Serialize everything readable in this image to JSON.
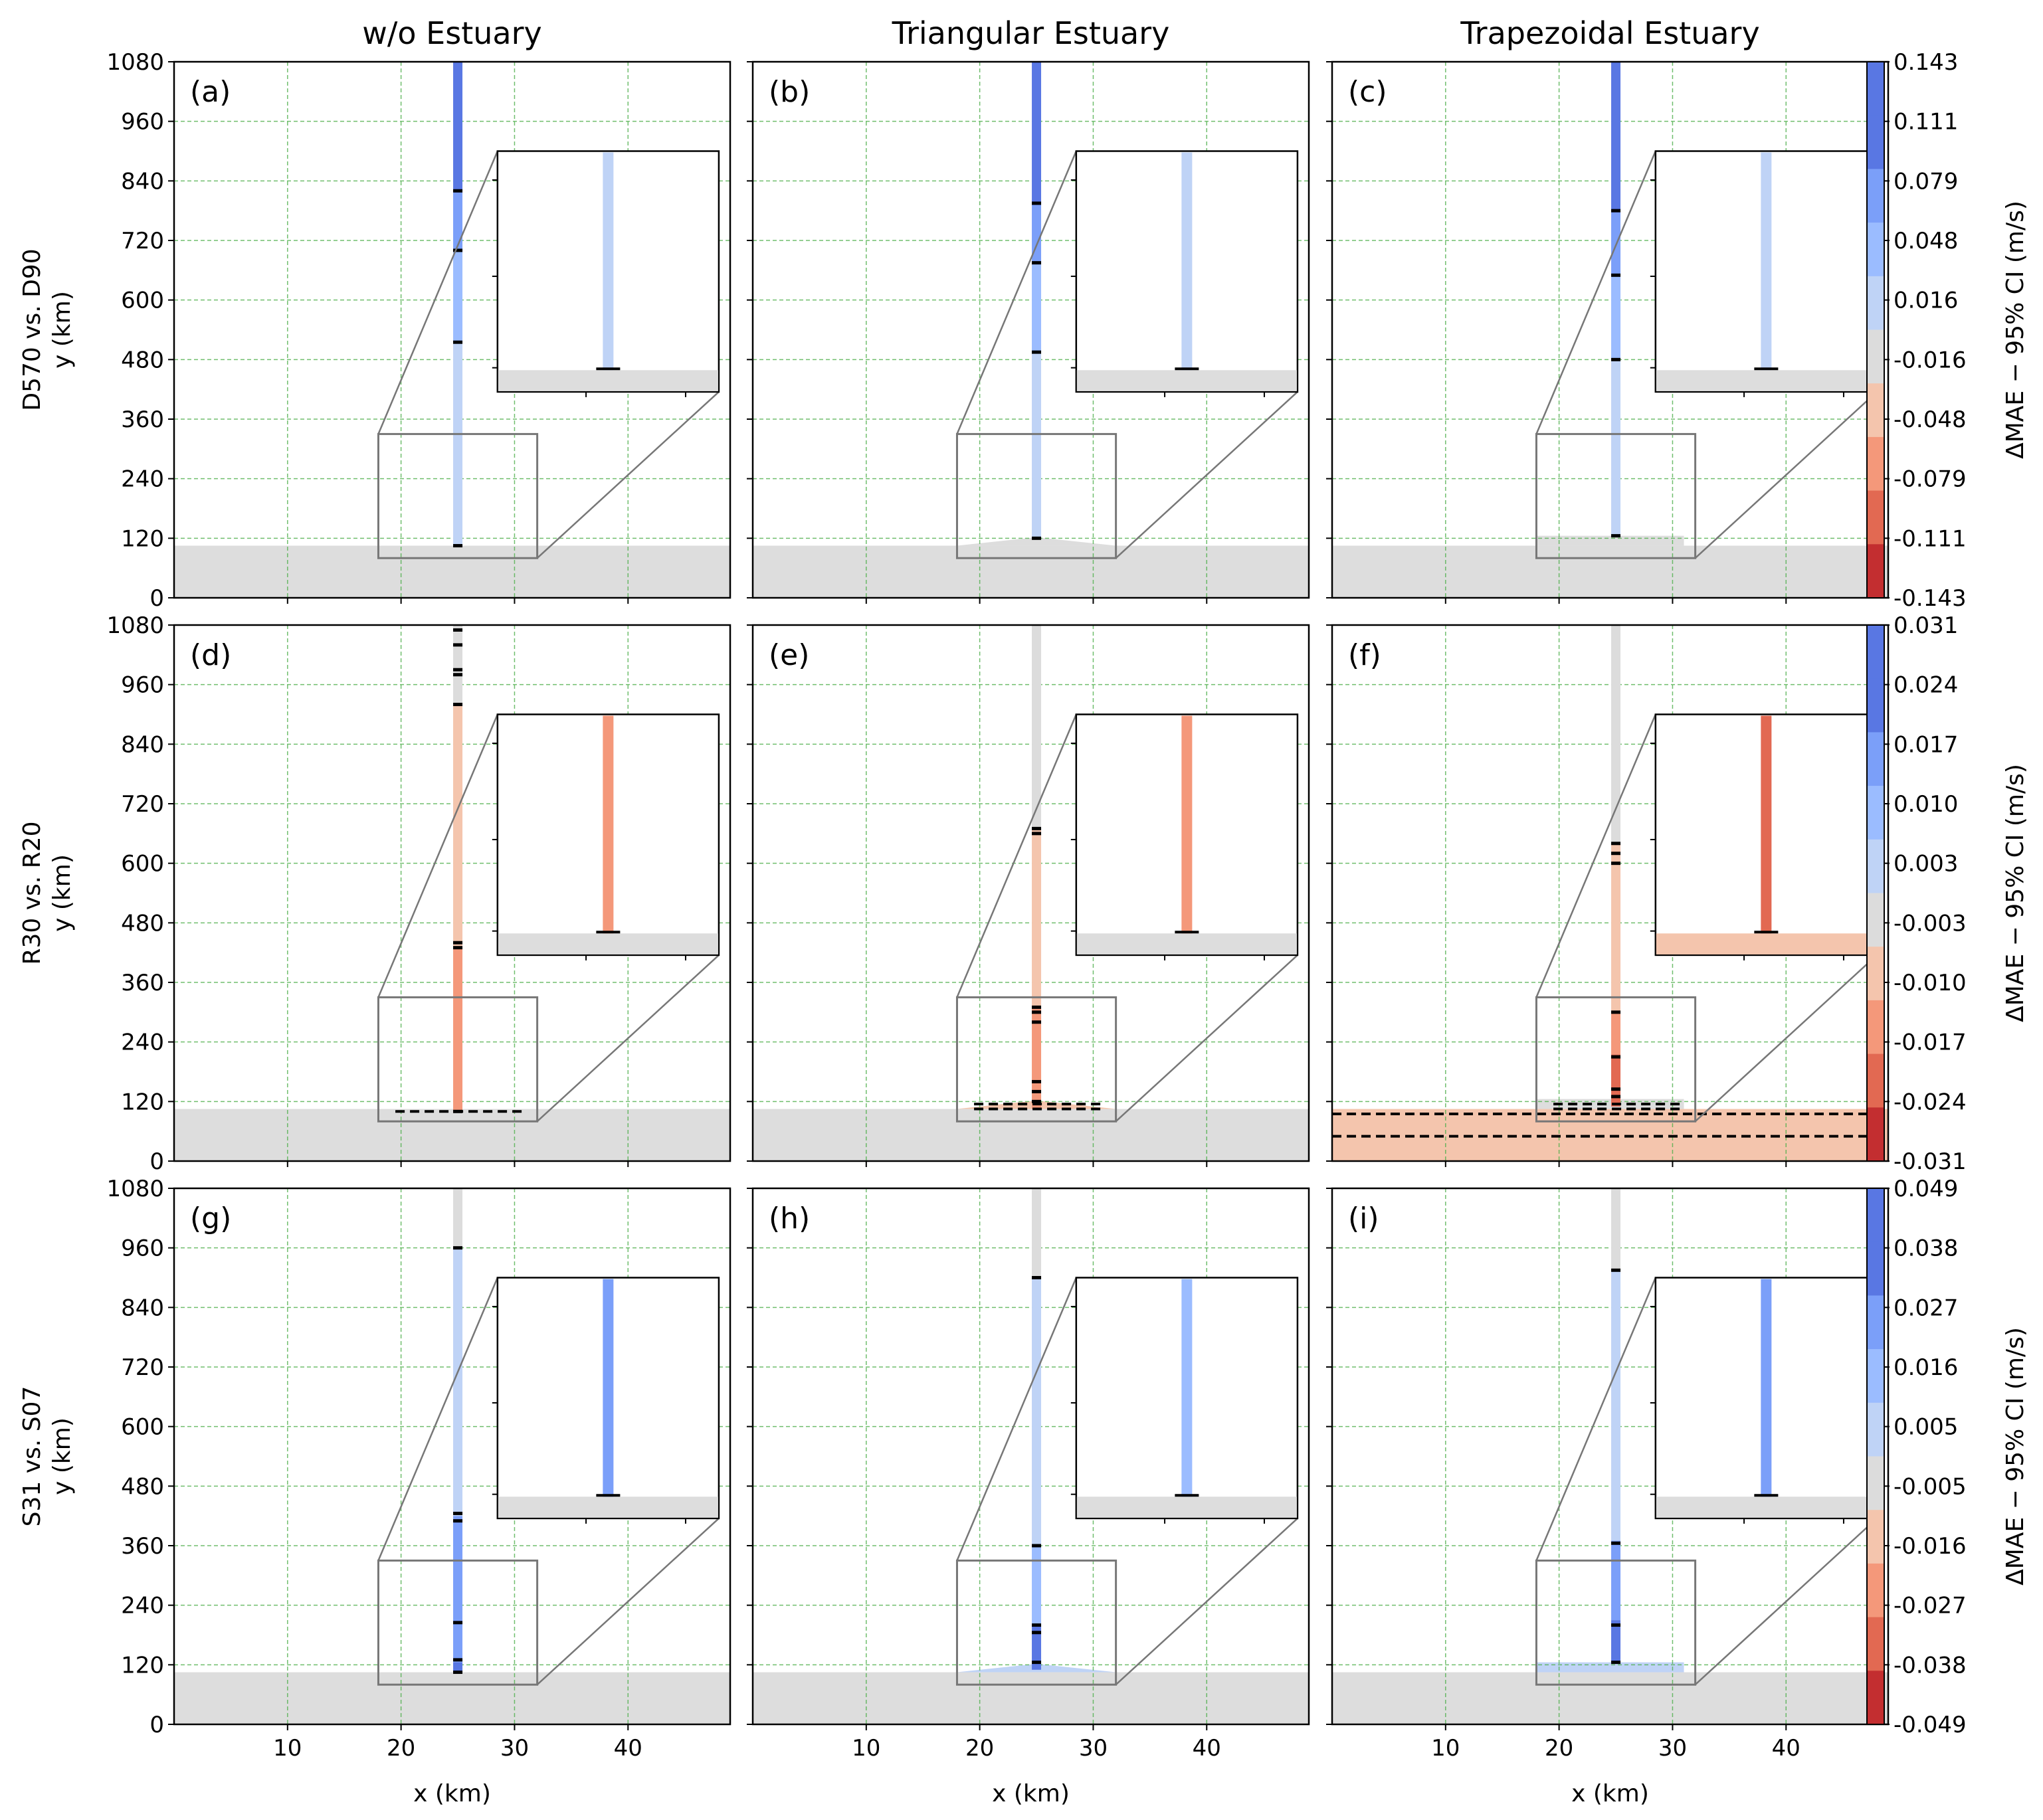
{
  "figure": {
    "column_titles": [
      "w/o Estuary",
      "Triangular Estuary",
      "Trapezoidal Estuary"
    ],
    "row_labels": [
      "D570 vs. D90",
      "R30 vs. R20",
      "S31 vs. S07"
    ],
    "panel_labels": [
      "(a)",
      "(b)",
      "(c)",
      "(d)",
      "(e)",
      "(f)",
      "(g)",
      "(h)",
      "(i)"
    ],
    "xlabel": "x (km)",
    "ylabel": "y (km)",
    "colorbar_label": "ΔMAE − 95% CI (m/s)",
    "colors": {
      "background_land": "#dddddd",
      "grid": "#4daf4a",
      "inset_frame": "#777777",
      "blue_1": "#bfd3f6",
      "blue_2": "#9bbcff",
      "blue_3": "#7b9ff9",
      "blue_4": "#5977e3",
      "red_1": "#f4c5ad",
      "red_2": "#f4987a",
      "red_3": "#e26952",
      "red_4": "#c32e30",
      "neutral": "#dcdcdc"
    }
  },
  "chart_data": [
    {
      "type": "heatmap",
      "panel": "(a)",
      "title": "w/o Estuary",
      "row": "D570 vs. D90",
      "xlabel": "",
      "ylabel": "y (km)",
      "xticks": [
        10,
        20,
        30,
        40
      ],
      "yticks": [
        0,
        120,
        240,
        360,
        480,
        600,
        720,
        840,
        960,
        1080
      ],
      "xlim": [
        0,
        49
      ],
      "ylim": [
        0,
        1080
      ],
      "grid": true,
      "estuary": "none",
      "channel_x": 25,
      "channel_segments": [
        {
          "y0": 105,
          "y1": 515,
          "color": "blue_1"
        },
        {
          "y0": 515,
          "y1": 700,
          "color": "blue_2"
        },
        {
          "y0": 700,
          "y1": 820,
          "color": "blue_3"
        },
        {
          "y0": 820,
          "y1": 1080,
          "color": "blue_4"
        }
      ],
      "contour_marks_y": [
        105,
        515,
        700,
        820
      ],
      "colorbar_ticks": [
        "0.143",
        "0.111",
        "0.079",
        "0.048",
        "0.016",
        "-0.016",
        "-0.048",
        "-0.079",
        "-0.111",
        "-0.143"
      ]
    },
    {
      "type": "heatmap",
      "panel": "(b)",
      "title": "Triangular Estuary",
      "row": "D570 vs. D90",
      "xticks": [
        10,
        20,
        30,
        40
      ],
      "yticks": [
        0,
        120,
        240,
        360,
        480,
        600,
        720,
        840,
        960,
        1080
      ],
      "xlim": [
        0,
        49
      ],
      "ylim": [
        0,
        1080
      ],
      "grid": true,
      "estuary": "triangular",
      "channel_x": 25,
      "channel_segments": [
        {
          "y0": 120,
          "y1": 495,
          "color": "blue_1"
        },
        {
          "y0": 495,
          "y1": 675,
          "color": "blue_2"
        },
        {
          "y0": 675,
          "y1": 795,
          "color": "blue_3"
        },
        {
          "y0": 795,
          "y1": 1080,
          "color": "blue_4"
        }
      ],
      "contour_marks_y": [
        120,
        495,
        675,
        795
      ]
    },
    {
      "type": "heatmap",
      "panel": "(c)",
      "title": "Trapezoidal Estuary",
      "row": "D570 vs. D90",
      "xticks": [
        10,
        20,
        30,
        40
      ],
      "yticks": [
        0,
        120,
        240,
        360,
        480,
        600,
        720,
        840,
        960,
        1080
      ],
      "xlim": [
        0,
        49
      ],
      "ylim": [
        0,
        1080
      ],
      "grid": true,
      "estuary": "trapezoidal",
      "channel_x": 25,
      "channel_segments": [
        {
          "y0": 125,
          "y1": 480,
          "color": "blue_1"
        },
        {
          "y0": 480,
          "y1": 650,
          "color": "blue_2"
        },
        {
          "y0": 650,
          "y1": 780,
          "color": "blue_3"
        },
        {
          "y0": 780,
          "y1": 1080,
          "color": "blue_4"
        }
      ],
      "contour_marks_y": [
        125,
        480,
        650,
        780
      ]
    },
    {
      "type": "heatmap",
      "panel": "(d)",
      "row": "R30 vs. R20",
      "ylabel": "y (km)",
      "xticks": [
        10,
        20,
        30,
        40
      ],
      "yticks": [
        0,
        120,
        240,
        360,
        480,
        600,
        720,
        840,
        960,
        1080
      ],
      "xlim": [
        0,
        49
      ],
      "ylim": [
        0,
        1080
      ],
      "grid": true,
      "estuary": "none",
      "channel_x": 25,
      "channel_segments": [
        {
          "y0": 100,
          "y1": 430,
          "color": "red_2"
        },
        {
          "y0": 430,
          "y1": 920,
          "color": "red_1"
        },
        {
          "y0": 920,
          "y1": 1080,
          "color": "neutral"
        }
      ],
      "contour_marks_y": [
        100,
        430,
        440,
        920,
        980,
        990,
        1040,
        1070
      ],
      "dashed_contours_y": [
        100
      ],
      "colorbar_ticks": [
        "0.031",
        "0.024",
        "0.017",
        "0.010",
        "0.003",
        "-0.003",
        "-0.010",
        "-0.017",
        "-0.024",
        "-0.031"
      ]
    },
    {
      "type": "heatmap",
      "panel": "(e)",
      "row": "R30 vs. R20",
      "xticks": [
        10,
        20,
        30,
        40
      ],
      "yticks": [
        0,
        120,
        240,
        360,
        480,
        600,
        720,
        840,
        960,
        1080
      ],
      "xlim": [
        0,
        49
      ],
      "ylim": [
        0,
        1080
      ],
      "grid": true,
      "estuary": "triangular",
      "estuary_fill": "red_1",
      "channel_x": 25,
      "channel_segments": [
        {
          "y0": 105,
          "y1": 310,
          "color": "red_2"
        },
        {
          "y0": 310,
          "y1": 670,
          "color": "red_1"
        },
        {
          "y0": 670,
          "y1": 1080,
          "color": "neutral"
        }
      ],
      "contour_marks_y": [
        120,
        140,
        160,
        280,
        300,
        310,
        660,
        670
      ],
      "dashed_contours_y": [
        105,
        115
      ]
    },
    {
      "type": "heatmap",
      "panel": "(f)",
      "row": "R30 vs. R20",
      "xticks": [
        10,
        20,
        30,
        40
      ],
      "yticks": [
        0,
        120,
        240,
        360,
        480,
        600,
        720,
        840,
        960,
        1080
      ],
      "xlim": [
        0,
        49
      ],
      "ylim": [
        0,
        1080
      ],
      "grid": true,
      "estuary": "trapezoidal",
      "coast_fill": "red_1",
      "channel_x": 25,
      "channel_segments": [
        {
          "y0": 110,
          "y1": 215,
          "color": "red_3"
        },
        {
          "y0": 215,
          "y1": 300,
          "color": "red_2"
        },
        {
          "y0": 300,
          "y1": 640,
          "color": "red_1"
        },
        {
          "y0": 640,
          "y1": 1080,
          "color": "neutral"
        }
      ],
      "contour_marks_y": [
        130,
        145,
        210,
        300,
        600,
        620,
        640
      ],
      "dashed_contours_y": [
        50,
        95,
        105,
        115
      ],
      "colorbar_ticks_repeat": true
    },
    {
      "type": "heatmap",
      "panel": "(g)",
      "row": "S31 vs. S07",
      "xlabel": "x (km)",
      "ylabel": "y (km)",
      "xticks": [
        10,
        20,
        30,
        40
      ],
      "yticks": [
        0,
        120,
        240,
        360,
        480,
        600,
        720,
        840,
        960,
        1080
      ],
      "xlim": [
        0,
        49
      ],
      "ylim": [
        0,
        1080
      ],
      "grid": true,
      "estuary": "none",
      "channel_x": 25,
      "channel_segments": [
        {
          "y0": 105,
          "y1": 125,
          "color": "blue_4"
        },
        {
          "y0": 125,
          "y1": 420,
          "color": "blue_3"
        },
        {
          "y0": 420,
          "y1": 960,
          "color": "blue_1"
        },
        {
          "y0": 960,
          "y1": 1080,
          "color": "neutral"
        }
      ],
      "contour_marks_y": [
        105,
        130,
        205,
        410,
        425,
        960
      ],
      "colorbar_ticks": [
        "0.049",
        "0.038",
        "0.027",
        "0.016",
        "0.005",
        "-0.005",
        "-0.016",
        "-0.027",
        "-0.038",
        "-0.049"
      ]
    },
    {
      "type": "heatmap",
      "panel": "(h)",
      "row": "S31 vs. S07",
      "xlabel": "x (km)",
      "xticks": [
        10,
        20,
        30,
        40
      ],
      "yticks": [
        0,
        120,
        240,
        360,
        480,
        600,
        720,
        840,
        960,
        1080
      ],
      "xlim": [
        0,
        49
      ],
      "ylim": [
        0,
        1080
      ],
      "grid": true,
      "estuary": "triangular",
      "estuary_fill": "blue_1",
      "channel_x": 25,
      "channel_segments": [
        {
          "y0": 110,
          "y1": 200,
          "color": "blue_4"
        },
        {
          "y0": 200,
          "y1": 360,
          "color": "blue_2"
        },
        {
          "y0": 360,
          "y1": 900,
          "color": "blue_1"
        },
        {
          "y0": 900,
          "y1": 1080,
          "color": "neutral"
        }
      ],
      "contour_marks_y": [
        125,
        185,
        200,
        360,
        900
      ]
    },
    {
      "type": "heatmap",
      "panel": "(i)",
      "row": "S31 vs. S07",
      "xlabel": "x (km)",
      "xticks": [
        10,
        20,
        30,
        40
      ],
      "yticks": [
        0,
        120,
        240,
        360,
        480,
        600,
        720,
        840,
        960,
        1080
      ],
      "xlim": [
        0,
        49
      ],
      "ylim": [
        0,
        1080
      ],
      "grid": true,
      "estuary": "trapezoidal",
      "estuary_fill": "blue_1",
      "channel_x": 25,
      "channel_segments": [
        {
          "y0": 125,
          "y1": 210,
          "color": "blue_4"
        },
        {
          "y0": 210,
          "y1": 370,
          "color": "blue_3"
        },
        {
          "y0": 370,
          "y1": 915,
          "color": "blue_1"
        },
        {
          "y0": 915,
          "y1": 1080,
          "color": "neutral"
        }
      ],
      "contour_marks_y": [
        125,
        200,
        365,
        915
      ]
    }
  ],
  "colorbars": [
    {
      "ticks": [
        "0.143",
        "0.111",
        "0.079",
        "0.048",
        "0.016",
        "-0.016",
        "-0.048",
        "-0.079",
        "-0.111",
        "-0.143"
      ]
    },
    {
      "ticks": [
        "0.031",
        "0.024",
        "0.017",
        "0.010",
        "0.003",
        "-0.003",
        "-0.010",
        "-0.017",
        "-0.024",
        "-0.031"
      ]
    },
    {
      "ticks": [
        "0.049",
        "0.038",
        "0.027",
        "0.016",
        "0.005",
        "-0.005",
        "-0.016",
        "-0.027",
        "-0.038",
        "-0.049"
      ]
    }
  ],
  "colorbar_colors": [
    "blue_4",
    "blue_4",
    "blue_3",
    "blue_2",
    "blue_1",
    "neutral",
    "red_1",
    "red_2",
    "red_3",
    "red_4"
  ]
}
